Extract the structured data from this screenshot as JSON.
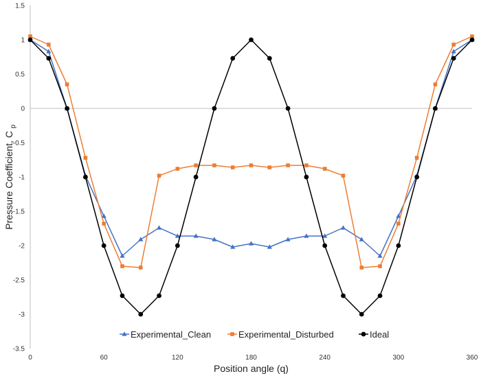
{
  "chart_data": {
    "type": "line",
    "title": "",
    "xlabel": "Position angle (q)",
    "ylabel_main": "Pressure Coefficient, C",
    "ylabel_sub": "p",
    "xlim": [
      0,
      360
    ],
    "ylim": [
      -3.5,
      1.5
    ],
    "xticks": [
      0,
      60,
      120,
      180,
      240,
      300,
      360
    ],
    "yticks": [
      1.5,
      1,
      0.5,
      0,
      -0.5,
      -1,
      -1.5,
      -2,
      -2.5,
      -3,
      -3.5
    ],
    "grid": false,
    "legend_position": "bottom-center",
    "x": [
      0,
      15,
      30,
      45,
      60,
      75,
      90,
      105,
      120,
      135,
      150,
      165,
      180,
      195,
      210,
      225,
      240,
      255,
      270,
      285,
      300,
      315,
      330,
      345,
      360
    ],
    "series": [
      {
        "name": "Experimental_Clean",
        "color": "#4472C4",
        "marker": "triangle",
        "values": [
          1.0,
          0.83,
          0.0,
          -0.98,
          -1.57,
          -2.15,
          -1.91,
          -1.74,
          -1.86,
          -1.86,
          -1.91,
          -2.02,
          -1.97,
          -2.02,
          -1.91,
          -1.86,
          -1.86,
          -1.74,
          -1.91,
          -2.15,
          -1.57,
          -0.98,
          0.0,
          0.83,
          1.0
        ]
      },
      {
        "name": "Experimental_Disturbed",
        "color": "#ED7D31",
        "marker": "square",
        "values": [
          1.05,
          0.93,
          0.35,
          -0.72,
          -1.68,
          -2.3,
          -2.32,
          -0.98,
          -0.88,
          -0.83,
          -0.83,
          -0.86,
          -0.83,
          -0.86,
          -0.83,
          -0.83,
          -0.88,
          -0.98,
          -2.32,
          -2.3,
          -1.68,
          -0.72,
          0.35,
          0.93,
          1.05
        ]
      },
      {
        "name": "Ideal",
        "color": "#000000",
        "marker": "circle",
        "values": [
          1.0,
          0.73,
          0.0,
          -1.0,
          -2.0,
          -2.73,
          -3.0,
          -2.73,
          -2.0,
          -1.0,
          0.0,
          0.73,
          1.0,
          0.73,
          0.0,
          -1.0,
          -2.0,
          -2.73,
          -3.0,
          -2.73,
          -2.0,
          -1.0,
          0.0,
          0.73,
          1.0
        ]
      }
    ]
  }
}
